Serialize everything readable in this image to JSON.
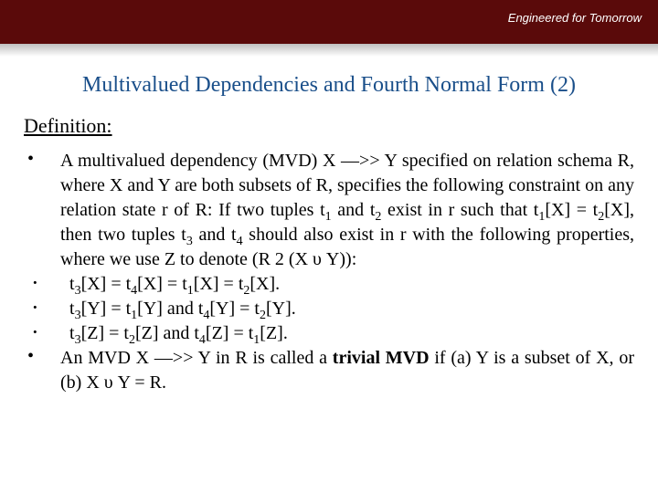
{
  "header": {
    "tagline": "Engineered for Tomorrow",
    "bar_color": "#5a0a0a",
    "tagline_color": "#ffffff"
  },
  "title": {
    "text": "Multivalued Dependencies and Fourth Normal Form (2)",
    "color": "#1a4f8a",
    "fontsize": 24
  },
  "definition_heading": "Definition:",
  "bullets": [
    {
      "marker": "•",
      "html": "A multivalued dependency (MVD) X —>> Y specified on relation schema R, where X and Y are both subsets of R, specifies the following constraint on any relation state r of R: If two tuples t<sub class='s'>1</sub> and t<sub class='s'>2</sub> exist in r such that t<sub class='s'>1</sub>[X] = t<sub class='s'>2</sub>[X], then two tuples t<sub class='s'>3</sub> and t<sub class='s'>4</sub> should also exist in r with the following properties, where we use Z to denote (R 2 (X υ Y)):",
      "indent": false
    },
    {
      "marker": "·",
      "html": "t<sub class='s'>3</sub>[X] = t<sub class='s'>4</sub>[X] = t<sub class='s'>1</sub>[X] = t<sub class='s'>2</sub>[X].",
      "indent": true
    },
    {
      "marker": "·",
      "html": "t<sub class='s'>3</sub>[Y] = t<sub class='s'>1</sub>[Y] and t<sub class='s'>4</sub>[Y] = t<sub class='s'>2</sub>[Y].",
      "indent": true
    },
    {
      "marker": "·",
      "html": "t<sub class='s'>3</sub>[Z] = t<sub class='s'>2</sub>[Z] and t<sub class='s'>4</sub>[Z] = t<sub class='s'>1</sub>[Z].",
      "indent": true
    },
    {
      "marker": "•",
      "html": "An MVD X —>> Y in R is called a <b>trivial MVD</b> if (a) Y is a subset of X, or (b) X υ Y = R.",
      "indent": false
    }
  ],
  "body_fontsize": 20,
  "body_color": "#000000",
  "background_color": "#ffffff"
}
